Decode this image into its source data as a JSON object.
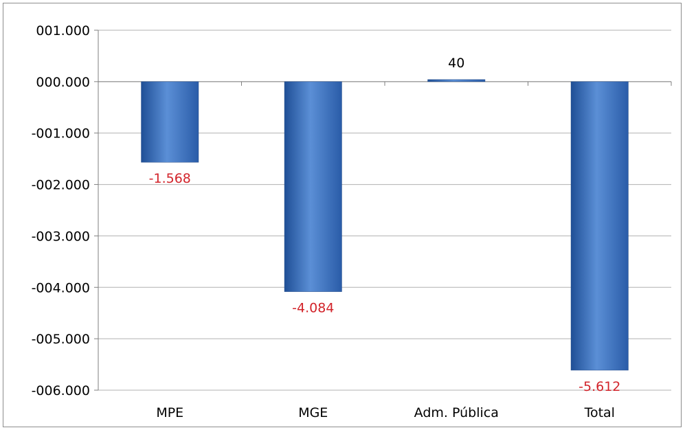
{
  "chart_data": {
    "type": "bar",
    "title": "",
    "xlabel": "",
    "ylabel": "",
    "categories": [
      "MPE",
      "MGE",
      "Adm. Pública",
      "Total"
    ],
    "values": [
      -1568,
      -4084,
      40,
      -5612
    ],
    "data_labels": [
      "-1.568",
      "-4.084",
      "40",
      "-5.612"
    ],
    "ylim": [
      -6000,
      1000
    ],
    "ytick_values": [
      1000,
      0,
      -1000,
      -2000,
      -3000,
      -4000,
      -5000,
      -6000
    ],
    "ytick_labels": [
      "001.000",
      "000.000",
      "-001.000",
      "-002.000",
      "-003.000",
      "-004.000",
      "-005.000",
      "-006.000"
    ],
    "grid": true,
    "legend": "none",
    "colors": {
      "bar_light": "#5b8fd6",
      "bar_mid": "#3a6fc0",
      "bar_dark": "#1f4f96",
      "negative_label": "#d2232a",
      "positive_label": "#000000",
      "grid": "#b0b0b0",
      "axis": "#7f7f7f"
    }
  }
}
